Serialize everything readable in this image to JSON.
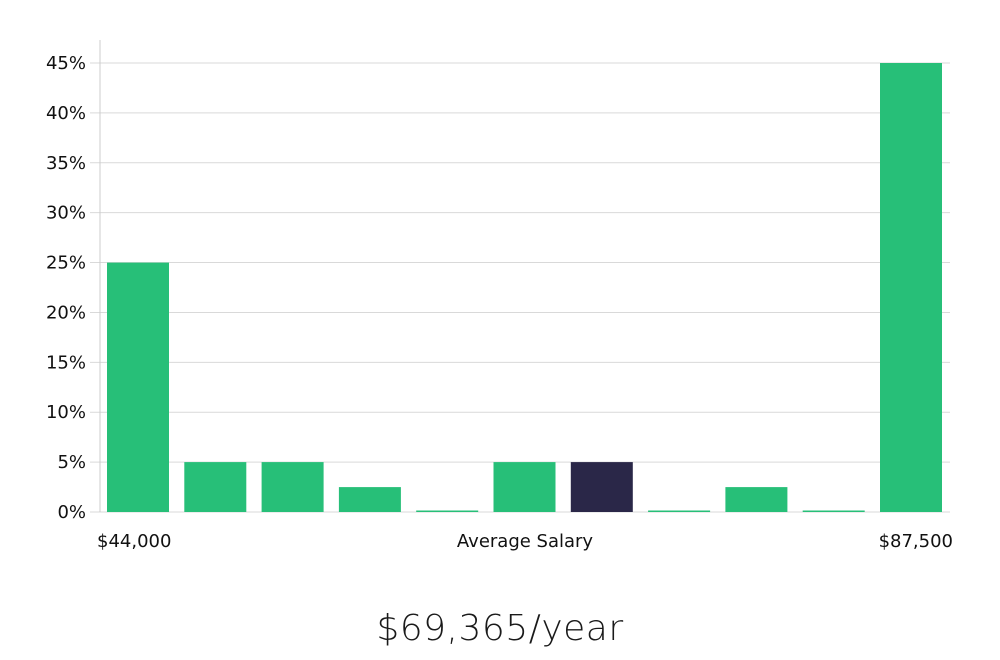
{
  "chart_data": {
    "type": "bar",
    "values": [
      25,
      5,
      5,
      2.5,
      0,
      5,
      5,
      0,
      2.5,
      0,
      45
    ],
    "highlight_index": 6,
    "ylim": [
      0,
      47
    ],
    "yticks": [
      "0%",
      "5%",
      "10%",
      "15%",
      "20%",
      "25%",
      "30%",
      "35%",
      "40%",
      "45%"
    ],
    "ytick_values": [
      0,
      5,
      10,
      15,
      20,
      25,
      30,
      35,
      40,
      45
    ],
    "x_min_label": "$44,000",
    "x_center_label": "Average Salary",
    "x_max_label": "$87,500",
    "grid": true,
    "colors": {
      "bar": "#27bf78",
      "highlight": "#2a2748",
      "grid": "#d9d9d9",
      "axis": "#cccccc"
    }
  },
  "salary": {
    "text": "$69,365/year"
  }
}
